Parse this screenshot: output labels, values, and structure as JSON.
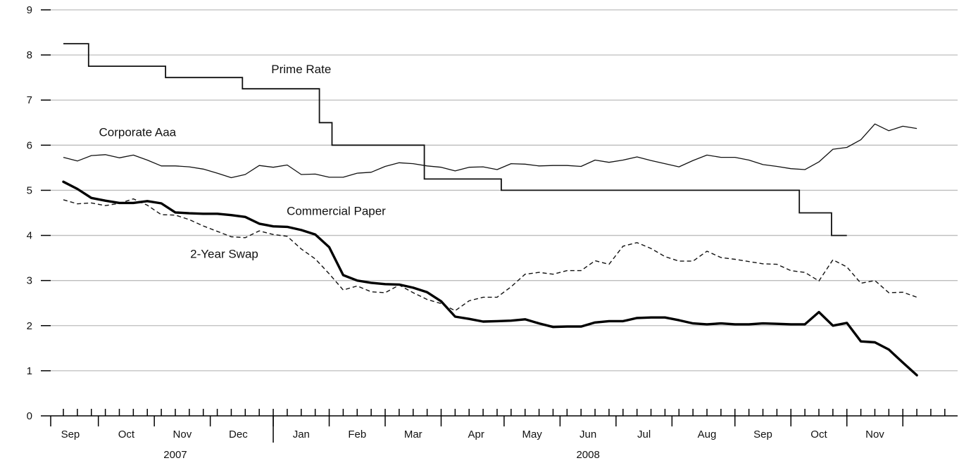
{
  "chart_data": {
    "type": "line",
    "title": "",
    "xlabel": "",
    "ylabel": "",
    "ylim": [
      0,
      9
    ],
    "yticks": [
      0,
      1,
      2,
      3,
      4,
      5,
      6,
      7,
      8,
      9
    ],
    "grid": true,
    "x_unit": "weeks from Aug 2007 (weekly)",
    "x_range": [
      0,
      67
    ],
    "months": [
      {
        "label": "Sep",
        "center": 0.5
      },
      {
        "label": "Oct",
        "center": 4.5
      },
      {
        "label": "Nov",
        "center": 8.5
      },
      {
        "label": "Dec",
        "center": 12.5
      },
      {
        "label": "Jan",
        "center": 17.0
      },
      {
        "label": "Feb",
        "center": 21.0
      },
      {
        "label": "Mar",
        "center": 25.0
      },
      {
        "label": "Apr",
        "center": 29.5
      },
      {
        "label": "May",
        "center": 33.5
      },
      {
        "label": "Jun",
        "center": 37.5
      },
      {
        "label": "Jul",
        "center": 41.5
      },
      {
        "label": "Aug",
        "center": 46.0
      },
      {
        "label": "Sep",
        "center": 50.0
      },
      {
        "label": "Oct",
        "center": 54.0
      },
      {
        "label": "Nov",
        "center": 58.0
      }
    ],
    "month_boundaries": [
      2.5,
      6.5,
      10.5,
      15.0,
      19.0,
      23.0,
      27.0,
      31.5,
      35.5,
      39.5,
      43.5,
      48.0,
      52.0,
      56.0,
      60.0
    ],
    "years": [
      {
        "label": "2007",
        "center": 8.0
      },
      {
        "label": "2008",
        "center": 37.5
      }
    ],
    "year_boundary": 15.0,
    "series": [
      {
        "name": "Prime Rate",
        "style": "step",
        "points": [
          [
            0,
            8.25
          ],
          [
            1.8,
            8.25
          ],
          [
            1.8,
            7.75
          ],
          [
            7.3,
            7.75
          ],
          [
            7.3,
            7.5
          ],
          [
            12.8,
            7.5
          ],
          [
            12.8,
            7.25
          ],
          [
            18.3,
            7.25
          ],
          [
            18.3,
            6.5
          ],
          [
            19.2,
            6.5
          ],
          [
            19.2,
            6.0
          ],
          [
            25.8,
            6.0
          ],
          [
            25.8,
            5.25
          ],
          [
            31.3,
            5.25
          ],
          [
            31.3,
            5.0
          ],
          [
            52.6,
            5.0
          ],
          [
            52.6,
            4.5
          ],
          [
            54.9,
            4.5
          ],
          [
            54.9,
            4.0
          ],
          [
            56.0,
            4.0
          ]
        ]
      },
      {
        "name": "Corporate Aaa",
        "style": "thin",
        "points": [
          [
            0,
            5.73
          ],
          [
            1,
            5.65
          ],
          [
            2,
            5.77
          ],
          [
            3,
            5.79
          ],
          [
            4,
            5.72
          ],
          [
            5,
            5.78
          ],
          [
            6,
            5.67
          ],
          [
            7,
            5.54
          ],
          [
            8,
            5.54
          ],
          [
            9,
            5.52
          ],
          [
            10,
            5.47
          ],
          [
            11,
            5.38
          ],
          [
            12,
            5.28
          ],
          [
            13,
            5.35
          ],
          [
            14,
            5.55
          ],
          [
            15,
            5.51
          ],
          [
            16,
            5.56
          ],
          [
            17,
            5.35
          ],
          [
            18,
            5.36
          ],
          [
            19,
            5.29
          ],
          [
            20,
            5.29
          ],
          [
            21,
            5.38
          ],
          [
            22,
            5.4
          ],
          [
            23,
            5.53
          ],
          [
            24,
            5.61
          ],
          [
            25,
            5.59
          ],
          [
            26,
            5.54
          ],
          [
            27,
            5.51
          ],
          [
            28,
            5.43
          ],
          [
            29,
            5.51
          ],
          [
            30,
            5.52
          ],
          [
            31,
            5.46
          ],
          [
            32,
            5.59
          ],
          [
            33,
            5.58
          ],
          [
            34,
            5.54
          ],
          [
            35,
            5.55
          ],
          [
            36,
            5.55
          ],
          [
            37,
            5.53
          ],
          [
            38,
            5.67
          ],
          [
            39,
            5.62
          ],
          [
            40,
            5.67
          ],
          [
            41,
            5.74
          ],
          [
            42,
            5.66
          ],
          [
            43,
            5.59
          ],
          [
            44,
            5.52
          ],
          [
            45,
            5.66
          ],
          [
            46,
            5.78
          ],
          [
            47,
            5.73
          ],
          [
            48,
            5.73
          ],
          [
            49,
            5.67
          ],
          [
            50,
            5.57
          ],
          [
            51,
            5.53
          ],
          [
            52,
            5.48
          ],
          [
            53,
            5.46
          ],
          [
            54,
            5.63
          ],
          [
            55,
            5.91
          ],
          [
            56,
            5.95
          ],
          [
            57,
            6.12
          ],
          [
            58,
            6.47
          ],
          [
            59,
            6.32
          ],
          [
            60,
            6.42
          ],
          [
            61,
            6.37
          ]
        ]
      },
      {
        "name": "Commercial Paper",
        "style": "dashed",
        "points": [
          [
            0,
            4.79
          ],
          [
            1,
            4.7
          ],
          [
            2,
            4.72
          ],
          [
            3,
            4.66
          ],
          [
            4,
            4.71
          ],
          [
            5,
            4.81
          ],
          [
            6,
            4.67
          ],
          [
            7,
            4.46
          ],
          [
            8,
            4.45
          ],
          [
            9,
            4.35
          ],
          [
            10,
            4.21
          ],
          [
            11,
            4.09
          ],
          [
            12,
            3.97
          ],
          [
            13,
            3.95
          ],
          [
            14,
            4.1
          ],
          [
            15,
            4.02
          ],
          [
            16,
            3.98
          ],
          [
            17,
            3.7
          ],
          [
            18,
            3.48
          ],
          [
            19,
            3.15
          ],
          [
            20,
            2.79
          ],
          [
            21,
            2.88
          ],
          [
            22,
            2.75
          ],
          [
            23,
            2.73
          ],
          [
            24,
            2.9
          ],
          [
            25,
            2.73
          ],
          [
            26,
            2.58
          ],
          [
            27,
            2.49
          ],
          [
            28,
            2.33
          ],
          [
            29,
            2.55
          ],
          [
            30,
            2.63
          ],
          [
            31,
            2.63
          ],
          [
            32,
            2.86
          ],
          [
            33,
            3.14
          ],
          [
            34,
            3.18
          ],
          [
            35,
            3.14
          ],
          [
            36,
            3.22
          ],
          [
            37,
            3.22
          ],
          [
            38,
            3.44
          ],
          [
            39,
            3.36
          ],
          [
            40,
            3.76
          ],
          [
            41,
            3.84
          ],
          [
            42,
            3.71
          ],
          [
            43,
            3.53
          ],
          [
            44,
            3.43
          ],
          [
            45,
            3.43
          ],
          [
            46,
            3.65
          ],
          [
            47,
            3.51
          ],
          [
            48,
            3.47
          ],
          [
            49,
            3.42
          ],
          [
            50,
            3.37
          ],
          [
            51,
            3.36
          ],
          [
            52,
            3.22
          ],
          [
            53,
            3.18
          ],
          [
            54,
            2.99
          ],
          [
            55,
            3.46
          ],
          [
            56,
            3.3
          ],
          [
            57,
            2.94
          ],
          [
            58,
            3.0
          ],
          [
            59,
            2.73
          ],
          [
            60,
            2.74
          ],
          [
            61,
            2.63
          ]
        ]
      },
      {
        "name": "2-Year Swap",
        "style": "thick",
        "points": [
          [
            0,
            5.19
          ],
          [
            1,
            5.03
          ],
          [
            2,
            4.83
          ],
          [
            3,
            4.77
          ],
          [
            4,
            4.72
          ],
          [
            5,
            4.72
          ],
          [
            6,
            4.76
          ],
          [
            7,
            4.71
          ],
          [
            8,
            4.51
          ],
          [
            9,
            4.49
          ],
          [
            10,
            4.48
          ],
          [
            11,
            4.48
          ],
          [
            12,
            4.45
          ],
          [
            13,
            4.41
          ],
          [
            14,
            4.26
          ],
          [
            15,
            4.2
          ],
          [
            16,
            4.19
          ],
          [
            17,
            4.12
          ],
          [
            18,
            4.02
          ],
          [
            19,
            3.74
          ],
          [
            20,
            3.12
          ],
          [
            21,
            3.0
          ],
          [
            22,
            2.95
          ],
          [
            23,
            2.92
          ],
          [
            24,
            2.91
          ],
          [
            25,
            2.84
          ],
          [
            26,
            2.74
          ],
          [
            27,
            2.54
          ],
          [
            28,
            2.2
          ],
          [
            29,
            2.15
          ],
          [
            30,
            2.09
          ],
          [
            31,
            2.1
          ],
          [
            32,
            2.11
          ],
          [
            33,
            2.14
          ],
          [
            34,
            2.05
          ],
          [
            35,
            1.97
          ],
          [
            36,
            1.98
          ],
          [
            37,
            1.98
          ],
          [
            38,
            2.07
          ],
          [
            39,
            2.1
          ],
          [
            40,
            2.1
          ],
          [
            41,
            2.17
          ],
          [
            42,
            2.18
          ],
          [
            43,
            2.18
          ],
          [
            44,
            2.12
          ],
          [
            45,
            2.05
          ],
          [
            46,
            2.03
          ],
          [
            47,
            2.05
          ],
          [
            48,
            2.03
          ],
          [
            49,
            2.03
          ],
          [
            50,
            2.05
          ],
          [
            51,
            2.04
          ],
          [
            52,
            2.03
          ],
          [
            53,
            2.03
          ],
          [
            54,
            2.3
          ],
          [
            55,
            2.0
          ],
          [
            56,
            2.06
          ],
          [
            57,
            1.65
          ],
          [
            58,
            1.63
          ],
          [
            59,
            1.47
          ],
          [
            60,
            1.18
          ],
          [
            61,
            0.9
          ]
        ]
      }
    ],
    "annotations": [
      {
        "text": "Prime Rate",
        "x": 17.0,
        "y": 7.6
      },
      {
        "text": "Corporate Aaa",
        "x": 5.3,
        "y": 6.2
      },
      {
        "text": "Commercial Paper",
        "x": 19.5,
        "y": 4.45
      },
      {
        "text": "2-Year Swap",
        "x": 11.5,
        "y": 3.5
      }
    ]
  }
}
